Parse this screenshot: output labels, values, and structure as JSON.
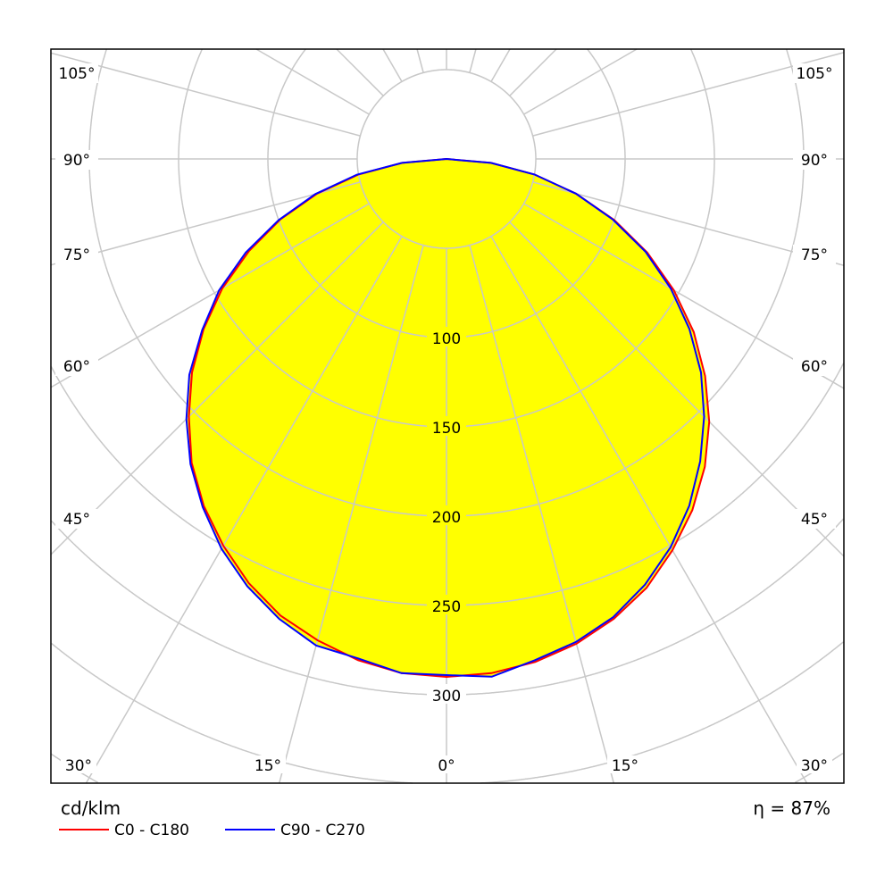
{
  "chart_data": {
    "type": "polar",
    "unit_label": "cd/klm",
    "efficiency_label": "η = 87%",
    "radial_ticks": [
      100,
      150,
      200,
      250,
      300
    ],
    "radial_grid": [
      50,
      100,
      150,
      200,
      250,
      300,
      350,
      400
    ],
    "angle_grid_step_deg": 15,
    "angle_labels_side": [
      "105°",
      "90°",
      "75°",
      "60°",
      "45°"
    ],
    "angle_labels_bottom": [
      "30°",
      "15°",
      "0°",
      "15°",
      "30°"
    ],
    "fill_color": "#ffff00",
    "grid_color": "#c8c8c8",
    "angles_deg": [
      0,
      5,
      10,
      15,
      20,
      25,
      30,
      35,
      40,
      45,
      50,
      55,
      60,
      65,
      70,
      75,
      80,
      85,
      90
    ],
    "series": [
      {
        "name": "C0 - C180",
        "color": "#ff0000",
        "right": [
          290,
          289,
          286,
          281,
          274,
          265,
          253,
          240,
          225,
          208,
          189,
          169,
          147,
          124,
          100,
          75,
          50,
          25,
          0
        ],
        "left": [
          290,
          289,
          285,
          279,
          272,
          262,
          250,
          237,
          222,
          204,
          186,
          166,
          145,
          122,
          99,
          75,
          50,
          25,
          0
        ]
      },
      {
        "name": "C90 - C270",
        "color": "#0000ff",
        "right": [
          291,
          291,
          285,
          280,
          273,
          263,
          251,
          237,
          221,
          204,
          186,
          166,
          145,
          123,
          99,
          75,
          50,
          25,
          0
        ],
        "left": [
          289,
          289,
          284,
          282,
          274,
          264,
          252,
          238,
          223,
          206,
          188,
          167,
          147,
          124,
          100,
          76,
          51,
          25,
          0
        ]
      }
    ]
  }
}
